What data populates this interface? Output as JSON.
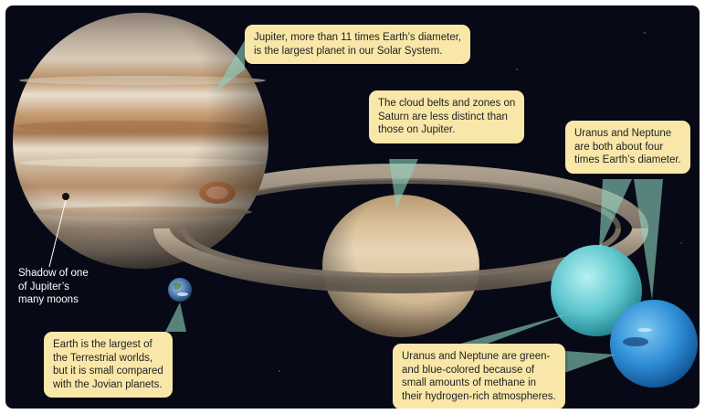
{
  "colors": {
    "background": "#070a16",
    "callout_fill": "#f8e7a8",
    "pointer_fill": "#8fd3c0",
    "label_text": "#ffffff"
  },
  "planets": [
    "Jupiter",
    "Saturn",
    "Uranus",
    "Neptune",
    "Earth"
  ],
  "callouts": {
    "jupiter": "Jupiter, more than 11 times Earth’s diameter,\nis the largest planet in our Solar System.",
    "saturn": "The cloud belts and zones on\nSaturn are less distinct than\nthose on Jupiter.",
    "uranus_neptune_size": "Uranus and Neptune\nare both about four\ntimes Earth’s diameter.",
    "earth": "Earth is the largest of\nthe Terrestrial worlds,\nbut it is small compared\nwith the Jovian planets.",
    "uranus_neptune_color": "Uranus and Neptune are green-\nand blue-colored because of\nsmall amounts of methane in\ntheir hydrogen-rich atmospheres."
  },
  "labels": {
    "shadow": "Shadow of one\nof Jupiter’s\nmany moons"
  }
}
